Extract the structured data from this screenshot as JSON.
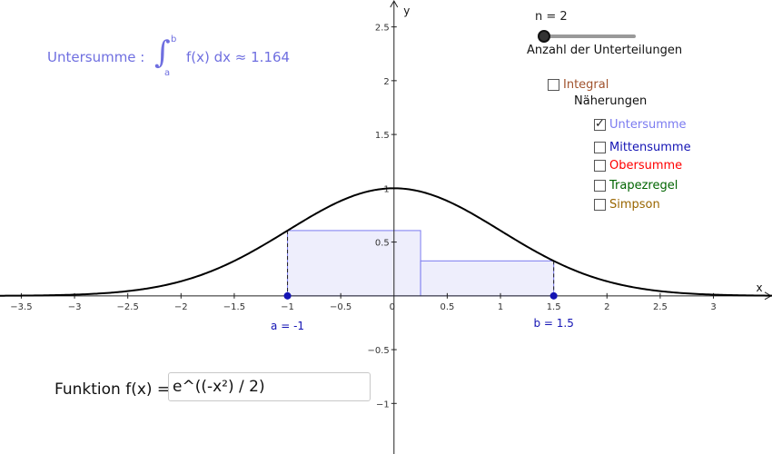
{
  "formula": {
    "label": "Untersumme :",
    "integral_sign": "∫",
    "upper_bound": "b",
    "lower_bound": "a",
    "integrand": "f(x) dx  ≈ 1.164"
  },
  "slider": {
    "value_label": "n = 2",
    "caption": "Anzahl der Unterteilungen",
    "value": 2
  },
  "checkboxes": {
    "integral": {
      "label": "Integral",
      "checked": false,
      "color": "#a0522d"
    },
    "group_title": "Näherungen",
    "untersumme": {
      "label": "Untersumme",
      "checked": true,
      "color": "#7b7bf0"
    },
    "mittensumme": {
      "label": "Mittensumme",
      "checked": false,
      "color": "#1414b4"
    },
    "obersumme": {
      "label": "Obersumme",
      "checked": false,
      "color": "#ff0000"
    },
    "trapezregel": {
      "label": "Trapezregel",
      "checked": false,
      "color": "#006400"
    },
    "simpson": {
      "label": "Simpson",
      "checked": false,
      "color": "#996600"
    }
  },
  "function_input": {
    "label": "Funktion f(x) =",
    "value": "e^((-x²) / 2)"
  },
  "chart_data": {
    "type": "area",
    "function": "exp(-x^2/2)",
    "xlabel": "x",
    "ylabel": "y",
    "xlim": [
      -3.7,
      3.55
    ],
    "ylim": [
      -1.47,
      2.75
    ],
    "x_ticks": [
      -3.5,
      -3,
      -2.5,
      -2,
      -1.5,
      -1,
      -0.5,
      0.5,
      1,
      1.5,
      2,
      2.5,
      3
    ],
    "x_tick_labels": [
      "−3.5",
      "−3",
      "−2.5",
      "−2",
      "−1.5",
      "−1",
      "−0.5",
      "0.5",
      "1",
      "1.5",
      "2",
      "2.5",
      "3"
    ],
    "y_ticks": [
      -1,
      -0.5,
      0.5,
      1,
      1.5,
      2,
      2.5
    ],
    "y_tick_labels": [
      "−1",
      "−0.5",
      "0.5",
      "1",
      "1.5",
      "2",
      "2.5"
    ],
    "origin_label": "0",
    "a": -1,
    "b": 1.5,
    "a_label": "a = -1",
    "b_label": "b = 1.5",
    "rectangles": [
      {
        "x0": -1,
        "x1": 0.25,
        "height": 0.607
      },
      {
        "x0": 0.25,
        "x1": 1.5,
        "height": 0.325
      }
    ],
    "colors": {
      "curve": "#000000",
      "rect_fill": "#eeeefc",
      "rect_stroke": "#7b7bf0",
      "points": "#1414b4"
    }
  }
}
